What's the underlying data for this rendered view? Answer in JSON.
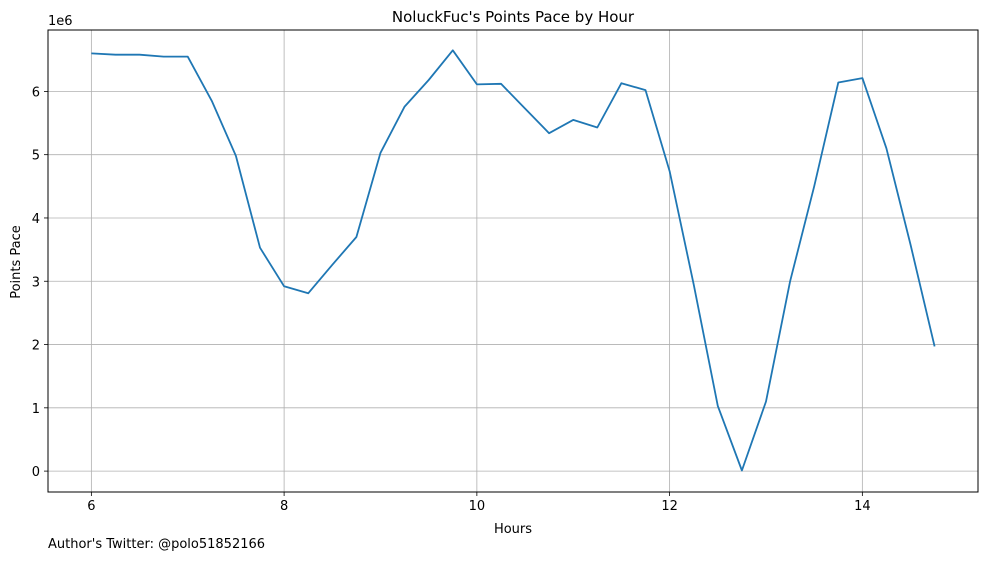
{
  "chart_data": {
    "type": "line",
    "title": "NoluckFuc's Points Pace by Hour",
    "xlabel": "Hours",
    "ylabel": "Points Pace",
    "y_offset_label": "1e6",
    "xlim": [
      5.55,
      15.2
    ],
    "ylim": [
      -0.33,
      6.97
    ],
    "x_ticks": [
      6,
      8,
      10,
      12,
      14
    ],
    "y_ticks": [
      0,
      1,
      2,
      3,
      4,
      5,
      6
    ],
    "grid": true,
    "line_color": "#1f77b4",
    "series": [
      {
        "x": [
          6,
          6.25,
          6.5,
          6.75,
          7,
          7.25,
          7.5,
          7.75,
          8,
          8.25,
          8.5,
          8.75,
          9,
          9.25,
          9.5,
          9.75,
          10,
          10.25,
          10.5,
          10.75,
          11,
          11.25,
          11.5,
          11.75,
          12,
          12.25,
          12.5,
          12.75,
          13,
          13.25,
          13.5,
          13.75,
          14,
          14.25,
          14.5,
          14.75
        ],
        "y": [
          6.6,
          6.58,
          6.58,
          6.55,
          6.55,
          5.85,
          4.98,
          3.53,
          2.92,
          2.81,
          3.26,
          3.7,
          5.03,
          5.76,
          6.18,
          6.65,
          6.11,
          6.12,
          5.73,
          5.34,
          5.55,
          5.43,
          6.13,
          6.02,
          4.74,
          2.95,
          1.03,
          0.01,
          1.1,
          3.0,
          4.5,
          6.14,
          6.21,
          5.1,
          3.58,
          1.97
        ]
      }
    ]
  },
  "footer": {
    "text": "Author's Twitter: @polo51852166"
  }
}
